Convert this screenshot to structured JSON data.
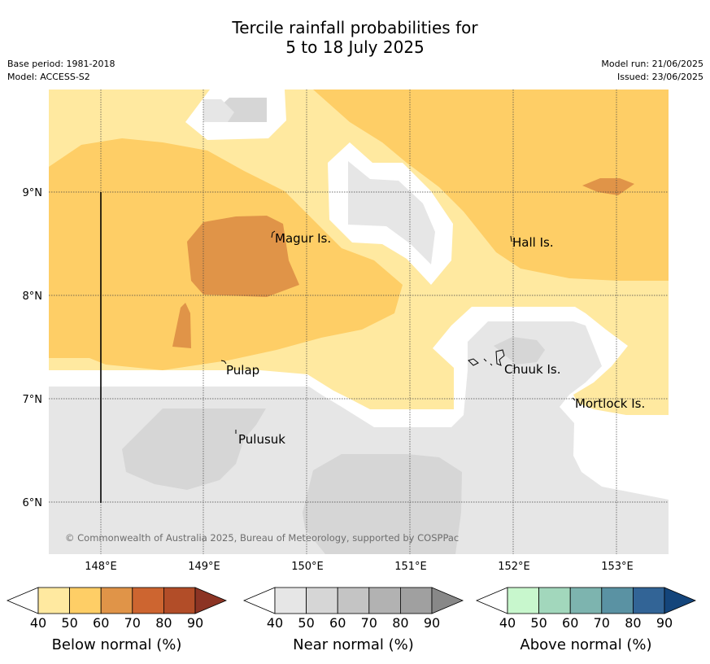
{
  "title": {
    "line1": "Tercile rainfall probabilities for",
    "line2": "5 to 18 July 2025"
  },
  "meta": {
    "base_period": "Base period: 1981-2018",
    "model": "Model: ACCESS-S2",
    "model_run": "Model run: 21/06/2025",
    "issued": "Issued: 23/06/2025"
  },
  "map": {
    "lon_labels": [
      "148°E",
      "149°E",
      "150°E",
      "151°E",
      "152°E",
      "153°E"
    ],
    "lat_labels": [
      "9°N",
      "8°N",
      "7°N",
      "6°N"
    ],
    "places": [
      {
        "name": "Magur Is.",
        "lon": 149.68,
        "lat": 8.57
      },
      {
        "name": "Hall Is.",
        "lon": 151.98,
        "lat": 8.57
      },
      {
        "name": "Pulap",
        "lon": 149.2,
        "lat": 7.35
      },
      {
        "name": "Chuuk Is.",
        "lon": 151.85,
        "lat": 7.37
      },
      {
        "name": "Mortlock Is.",
        "lon": 152.6,
        "lat": 7.0
      },
      {
        "name": "Pulusuk",
        "lon": 149.3,
        "lat": 6.69
      }
    ],
    "copyright": "© Commonwealth of Australia 2025, Bureau of Meteorology, supported by COSPPac"
  },
  "legends": [
    {
      "title": "Below normal (%)",
      "ticks": [
        "40",
        "50",
        "60",
        "70",
        "80",
        "90"
      ],
      "colors": [
        "#ffffff",
        "#ffe9a0",
        "#fece66",
        "#e09448",
        "#cd6530",
        "#b24d28",
        "#8c3424"
      ]
    },
    {
      "title": "Near normal (%)",
      "ticks": [
        "40",
        "50",
        "60",
        "70",
        "80",
        "90"
      ],
      "colors": [
        "#ffffff",
        "#e6e6e6",
        "#d6d6d6",
        "#c4c4c4",
        "#b2b2b2",
        "#a0a0a0",
        "#888888"
      ]
    },
    {
      "title": "Above normal (%)",
      "ticks": [
        "40",
        "50",
        "60",
        "70",
        "80",
        "90"
      ],
      "colors": [
        "#ffffff",
        "#c8f7cd",
        "#a2d7bc",
        "#7db4af",
        "#5a92a3",
        "#326496",
        "#14457b"
      ]
    }
  ]
}
